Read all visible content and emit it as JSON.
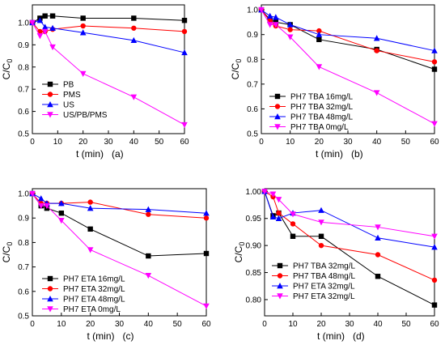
{
  "chart_data": [
    {
      "type": "line",
      "xlabel": "t (min)",
      "panel_label": "(a)",
      "ylabel": "C/C0",
      "xlim": [
        0,
        60
      ],
      "ylim": [
        0.5,
        1.08
      ],
      "xticks": [
        0,
        10,
        20,
        30,
        40,
        50,
        60
      ],
      "yticks": [
        0.5,
        0.6,
        0.7,
        0.8,
        0.9,
        1.0
      ],
      "tick_decimals": 1,
      "legend_position": "middle-left",
      "x": [
        0,
        3,
        5,
        8,
        20,
        40,
        60
      ],
      "series": [
        {
          "name": "PB",
          "color": "#000000",
          "marker": "square",
          "values": [
            1.0,
            1.02,
            1.03,
            1.03,
            1.02,
            1.02,
            1.01
          ]
        },
        {
          "name": "PMS",
          "color": "#ff0000",
          "marker": "circle",
          "values": [
            1.0,
            0.96,
            0.96,
            0.97,
            0.985,
            0.975,
            0.96
          ]
        },
        {
          "name": "US",
          "color": "#0000ff",
          "marker": "triangle-up",
          "values": [
            1.0,
            1.01,
            0.98,
            0.975,
            0.955,
            0.92,
            0.865
          ]
        },
        {
          "name": "US/PB/PMS",
          "color": "#ff00ff",
          "marker": "triangle-down",
          "values": [
            1.0,
            0.94,
            0.96,
            0.89,
            0.77,
            0.665,
            0.54
          ]
        }
      ]
    },
    {
      "type": "line",
      "xlabel": "t (min)",
      "panel_label": "(b)",
      "ylabel": "C/C0",
      "xlim": [
        0,
        60
      ],
      "ylim": [
        0.5,
        1.02
      ],
      "xticks": [
        0,
        10,
        20,
        30,
        40,
        50,
        60
      ],
      "yticks": [
        0.5,
        0.6,
        0.7,
        0.8,
        0.9,
        1.0
      ],
      "tick_decimals": 1,
      "legend_position": "bottom-left",
      "x": [
        0,
        3,
        5,
        10,
        20,
        40,
        60
      ],
      "series": [
        {
          "name": "PH7 TBA 16mg/L",
          "color": "#000000",
          "marker": "square",
          "values": [
            1.0,
            0.96,
            0.95,
            0.94,
            0.88,
            0.84,
            0.76
          ]
        },
        {
          "name": "PH7 TBA 32mg/L",
          "color": "#ff0000",
          "marker": "circle",
          "values": [
            1.0,
            0.955,
            0.935,
            0.92,
            0.915,
            0.835,
            0.79
          ]
        },
        {
          "name": "PH7 TBA 48mg/L",
          "color": "#0000ff",
          "marker": "triangle-up",
          "values": [
            1.0,
            0.975,
            0.97,
            0.94,
            0.9,
            0.885,
            0.835
          ]
        },
        {
          "name": "PH7 TBA 0mg/L",
          "color": "#ff00ff",
          "marker": "triangle-down",
          "values": [
            1.0,
            0.94,
            0.94,
            0.89,
            0.77,
            0.665,
            0.54
          ]
        }
      ]
    },
    {
      "type": "line",
      "xlabel": "t (min)",
      "panel_label": "(c)",
      "ylabel": "C/C0",
      "xlim": [
        0,
        60
      ],
      "ylim": [
        0.5,
        1.02
      ],
      "xticks": [
        0,
        10,
        20,
        30,
        40,
        50,
        60
      ],
      "yticks": [
        0.5,
        0.6,
        0.7,
        0.8,
        0.9,
        1.0
      ],
      "tick_decimals": 1,
      "legend_position": "bottom-left",
      "x": [
        0,
        3,
        5,
        10,
        20,
        40,
        60
      ],
      "series": [
        {
          "name": "PH7 ETA 16mg/L",
          "color": "#000000",
          "marker": "square",
          "values": [
            1.0,
            0.95,
            0.94,
            0.92,
            0.855,
            0.745,
            0.755
          ]
        },
        {
          "name": "PH7 ETA 32mg/L",
          "color": "#ff0000",
          "marker": "circle",
          "values": [
            1.0,
            0.96,
            0.96,
            0.96,
            0.965,
            0.915,
            0.9
          ]
        },
        {
          "name": "PH7 ETA 48mg/L",
          "color": "#0000ff",
          "marker": "triangle-up",
          "values": [
            1.0,
            0.98,
            0.96,
            0.96,
            0.94,
            0.935,
            0.92
          ]
        },
        {
          "name": "PH7 ETA 0mg/L",
          "color": "#ff00ff",
          "marker": "triangle-down",
          "values": [
            1.0,
            0.95,
            0.95,
            0.89,
            0.77,
            0.665,
            0.54
          ]
        }
      ]
    },
    {
      "type": "line",
      "xlabel": "t (min)",
      "panel_label": "(d)",
      "ylabel": "C/C0",
      "xlim": [
        0,
        60
      ],
      "ylim": [
        0.77,
        1.005
      ],
      "xticks": [
        0,
        10,
        20,
        30,
        40,
        50,
        60
      ],
      "yticks": [
        0.8,
        0.85,
        0.9,
        0.95,
        1.0
      ],
      "tick_decimals": 2,
      "legend_position": "bottom-left",
      "x": [
        0,
        3,
        5,
        10,
        20,
        40,
        60
      ],
      "series": [
        {
          "name": "PH7 TBA 32mg/L",
          "color": "#000000",
          "marker": "square",
          "values": [
            1.0,
            0.955,
            0.96,
            0.917,
            0.917,
            0.843,
            0.79
          ]
        },
        {
          "name": "PH7 TBA 48mg/L",
          "color": "#ff0000",
          "marker": "circle",
          "values": [
            1.0,
            0.99,
            0.96,
            0.94,
            0.9,
            0.883,
            0.836
          ]
        },
        {
          "name": "PH7 ETA 32mg/L",
          "color": "#0000ff",
          "marker": "triangle-up",
          "values": [
            1.0,
            0.953,
            0.95,
            0.96,
            0.965,
            0.914,
            0.897
          ]
        },
        {
          "name": "PH7 ETA 32mg/L",
          "color": "#ff00ff",
          "marker": "triangle-down",
          "values": [
            1.0,
            0.995,
            0.985,
            0.958,
            0.943,
            0.934,
            0.917
          ]
        }
      ]
    }
  ]
}
